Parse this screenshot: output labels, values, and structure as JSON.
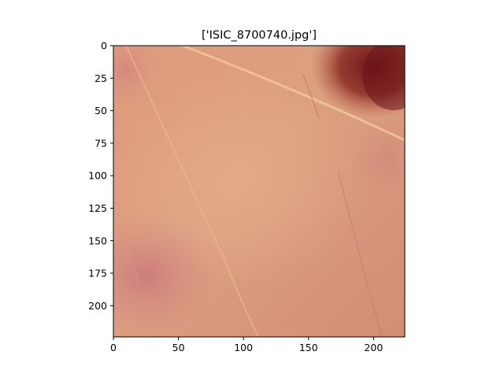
{
  "figure": {
    "title": "['ISIC_8700740.jpg']",
    "x_axis": {
      "range": [
        0,
        224
      ],
      "ticks": [
        0,
        50,
        100,
        150,
        200
      ]
    },
    "y_axis": {
      "range": [
        0,
        224
      ],
      "inverted": true,
      "ticks": [
        0,
        25,
        50,
        75,
        100,
        125,
        150,
        175,
        200
      ]
    },
    "image": {
      "subject": "dermoscopic skin image",
      "base_color": "#d99579",
      "lesion_color": "#7a1e1c"
    }
  }
}
